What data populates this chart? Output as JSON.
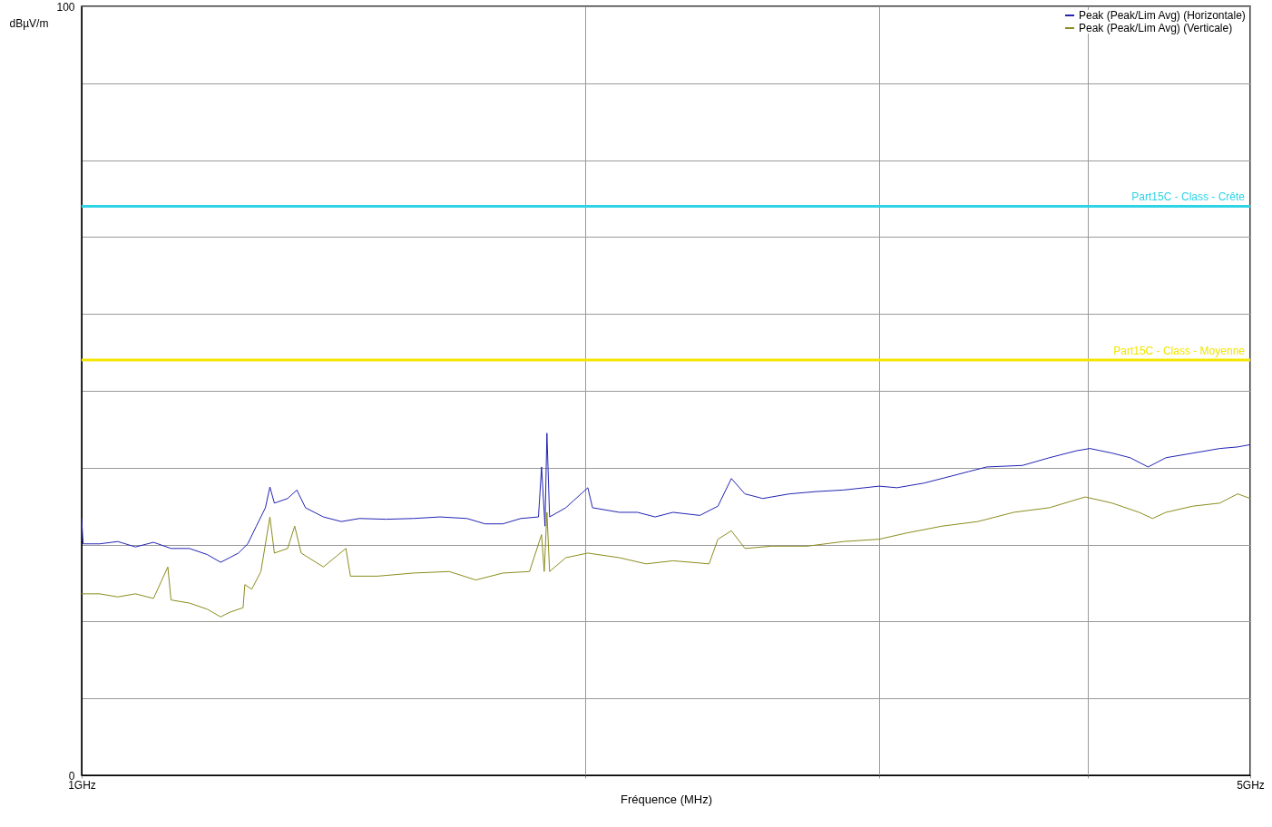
{
  "chart_data": {
    "type": "line",
    "xlabel": "Fréquence (MHz)",
    "ylabel": "dBµV/m",
    "log": "x",
    "xlim": [
      1,
      5
    ],
    "xticks": [
      {
        "value": 1,
        "label": "1GHz"
      },
      {
        "value": 2,
        "label": null
      },
      {
        "value": 3,
        "label": null
      },
      {
        "value": 4,
        "label": null
      },
      {
        "value": 5,
        "label": "5GHz"
      }
    ],
    "ylim": [
      0,
      100
    ],
    "yticks": [
      0,
      {
        "value": 10,
        "label": null
      },
      {
        "value": 20,
        "label": null
      },
      {
        "value": 30,
        "label": null
      },
      {
        "value": 40,
        "label": null
      },
      {
        "value": 50,
        "label": null
      },
      {
        "value": 60,
        "label": null
      },
      {
        "value": 70,
        "label": null
      },
      {
        "value": 80,
        "label": null
      },
      {
        "value": 90,
        "label": null
      },
      100
    ],
    "grid": true,
    "legend": "top right",
    "line_style": "solid",
    "marker": "none",
    "series": [
      {
        "name": "Peak (Peak/Lim Avg) (Horizontale)",
        "color": "#2323b4",
        "x": [
          1.0,
          1.002,
          1.025,
          1.051,
          1.077,
          1.104,
          1.131,
          1.16,
          1.189,
          1.211,
          1.226,
          1.241,
          1.257,
          1.272,
          1.288,
          1.296,
          1.304,
          1.328,
          1.345,
          1.361,
          1.395,
          1.43,
          1.466,
          1.521,
          1.579,
          1.638,
          1.7,
          1.743,
          1.786,
          1.831,
          1.876,
          1.884,
          1.893,
          1.898,
          1.905,
          1.948,
          2.008,
          2.021,
          2.097,
          2.15,
          2.203,
          2.258,
          2.343,
          2.402,
          2.447,
          2.493,
          2.555,
          2.651,
          2.751,
          2.855,
          2.999,
          3.074,
          3.19,
          3.311,
          3.393,
          3.478,
          3.654,
          3.792,
          3.935,
          4.009,
          4.134,
          4.238,
          4.344,
          4.452,
          4.62,
          4.795,
          4.914,
          5.0
        ],
        "values": [
          33.4,
          30.1,
          30.1,
          30.4,
          29.7,
          30.3,
          29.5,
          29.5,
          28.7,
          27.7,
          28.3,
          28.9,
          30.1,
          32.4,
          34.8,
          37.5,
          35.4,
          36.0,
          37.1,
          34.8,
          33.6,
          33.0,
          33.4,
          33.3,
          33.4,
          33.6,
          33.4,
          32.7,
          32.7,
          33.4,
          33.6,
          40.1,
          32.4,
          44.5,
          33.6,
          34.8,
          37.4,
          34.8,
          34.2,
          34.2,
          33.6,
          34.2,
          33.8,
          35.0,
          38.6,
          36.6,
          36.0,
          36.6,
          36.9,
          37.1,
          37.6,
          37.4,
          38.0,
          38.9,
          39.5,
          40.1,
          40.3,
          41.3,
          42.2,
          42.5,
          41.9,
          41.3,
          40.1,
          41.3,
          41.9,
          42.5,
          42.7,
          43.0
        ]
      },
      {
        "name": "Peak (Peak/Lim Avg) (Verticale)",
        "color": "#8c8c1e",
        "x": [
          1.0,
          1.025,
          1.051,
          1.077,
          1.104,
          1.126,
          1.131,
          1.16,
          1.189,
          1.211,
          1.226,
          1.249,
          1.252,
          1.264,
          1.28,
          1.296,
          1.304,
          1.328,
          1.341,
          1.353,
          1.395,
          1.439,
          1.448,
          1.503,
          1.579,
          1.659,
          1.721,
          1.786,
          1.853,
          1.884,
          1.891,
          1.898,
          1.905,
          1.948,
          2.008,
          2.097,
          2.176,
          2.258,
          2.373,
          2.402,
          2.447,
          2.493,
          2.587,
          2.717,
          2.855,
          2.999,
          3.113,
          3.27,
          3.436,
          3.61,
          3.792,
          3.984,
          4.134,
          4.29,
          4.371,
          4.452,
          4.62,
          4.795,
          4.914,
          5.0
        ],
        "values": [
          23.6,
          23.6,
          23.2,
          23.6,
          23.0,
          27.1,
          22.8,
          22.4,
          21.6,
          20.6,
          21.2,
          21.8,
          24.8,
          24.2,
          26.5,
          33.6,
          28.9,
          29.5,
          32.4,
          28.9,
          27.1,
          29.5,
          25.9,
          25.9,
          26.3,
          26.5,
          25.4,
          26.3,
          26.5,
          31.3,
          26.5,
          34.2,
          26.5,
          28.3,
          28.9,
          28.3,
          27.5,
          27.9,
          27.5,
          30.7,
          31.8,
          29.5,
          29.8,
          29.8,
          30.4,
          30.7,
          31.5,
          32.4,
          33.0,
          34.2,
          34.8,
          36.2,
          35.4,
          34.2,
          33.4,
          34.2,
          35.0,
          35.4,
          36.6,
          36.0
        ]
      }
    ],
    "ref_lines": [
      {
        "axis": "y",
        "value": 74,
        "label": "Part15C - Class  - Crête",
        "color": "#2ed3e6"
      },
      {
        "axis": "y",
        "value": 54,
        "label": "Part15C - Class  - Moyenne",
        "color": "#f2e600"
      }
    ]
  }
}
